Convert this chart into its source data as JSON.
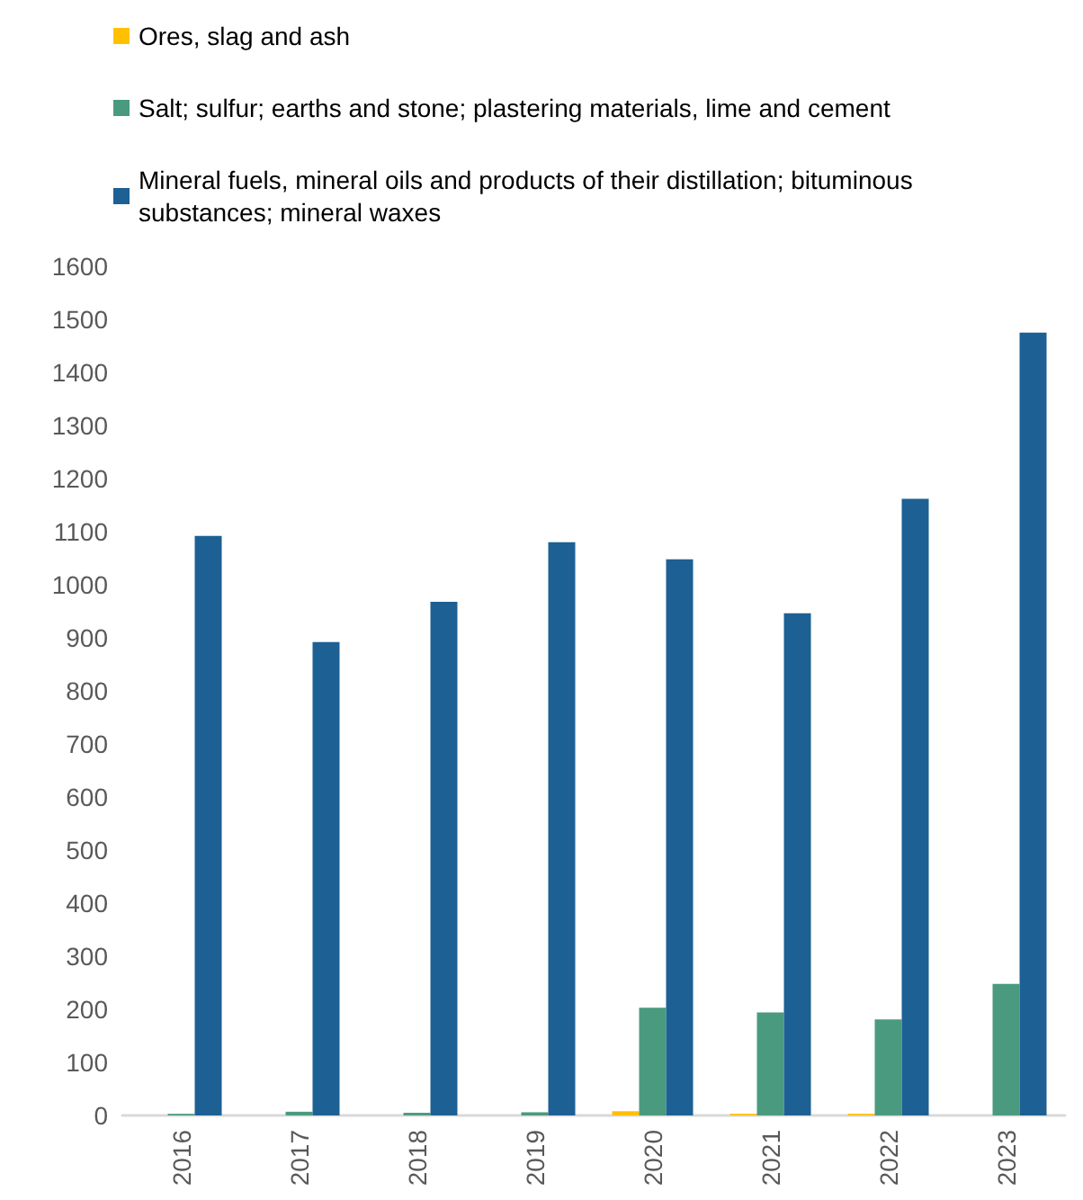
{
  "chart_data": {
    "type": "bar",
    "categories": [
      "2016",
      "2017",
      "2018",
      "2019",
      "2020",
      "2021",
      "2022",
      "2023"
    ],
    "series": [
      {
        "name": "Ores, slag and ash",
        "color": "#ffc000",
        "values": [
          0,
          0,
          0,
          0,
          8,
          3,
          3,
          0
        ]
      },
      {
        "name": "Salt; sulfur; earths and stone; plastering materials, lime and cement",
        "color": "#4a9a7f",
        "values": [
          3,
          7,
          5,
          6,
          203,
          194,
          181,
          248
        ]
      },
      {
        "name": "Mineral fuels, mineral oils and products of their distillation; bituminous substances; mineral waxes",
        "color": "#1d6094",
        "values": [
          1092,
          892,
          968,
          1080,
          1048,
          946,
          1162,
          1475
        ]
      }
    ],
    "ylim": [
      0,
      1600
    ],
    "yticks": [
      0,
      100,
      200,
      300,
      400,
      500,
      600,
      700,
      800,
      900,
      1000,
      1100,
      1200,
      1300,
      1400,
      1500,
      1600
    ],
    "grid": false,
    "legend": "top left"
  }
}
